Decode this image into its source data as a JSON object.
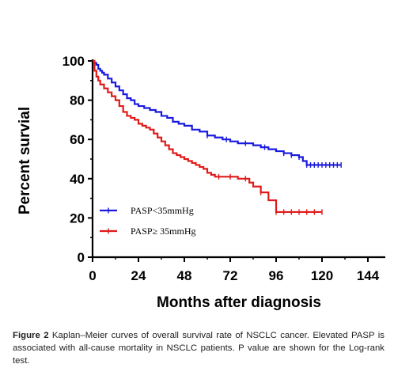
{
  "chart_data": {
    "type": "line",
    "xlabel": "Months after diagnosis",
    "ylabel": "Percent survial",
    "xlim": [
      0,
      144
    ],
    "ylim": [
      0,
      100
    ],
    "x_ticks": [
      "0",
      "24",
      "48",
      "72",
      "96",
      "120",
      "144"
    ],
    "y_ticks": [
      "0",
      "20",
      "40",
      "60",
      "80",
      "100"
    ],
    "legend_position": "lower-left",
    "series": [
      {
        "name": "PASP<35mmHg",
        "color": "#1a1adf",
        "step": true,
        "points": [
          [
            0,
            100
          ],
          [
            1,
            99
          ],
          [
            2,
            98
          ],
          [
            3,
            96
          ],
          [
            4,
            95
          ],
          [
            5,
            94
          ],
          [
            6,
            93
          ],
          [
            8,
            91
          ],
          [
            10,
            89
          ],
          [
            12,
            87
          ],
          [
            14,
            85
          ],
          [
            16,
            83
          ],
          [
            18,
            81
          ],
          [
            20,
            80
          ],
          [
            22,
            78
          ],
          [
            24,
            77
          ],
          [
            27,
            76
          ],
          [
            30,
            75
          ],
          [
            33,
            74
          ],
          [
            36,
            72
          ],
          [
            39,
            71
          ],
          [
            42,
            69
          ],
          [
            45,
            68
          ],
          [
            48,
            67
          ],
          [
            52,
            65
          ],
          [
            56,
            64
          ],
          [
            60,
            62
          ],
          [
            64,
            61
          ],
          [
            68,
            60
          ],
          [
            72,
            59
          ],
          [
            76,
            58
          ],
          [
            80,
            58
          ],
          [
            84,
            57
          ],
          [
            88,
            56
          ],
          [
            92,
            55
          ],
          [
            96,
            54
          ],
          [
            100,
            53
          ],
          [
            104,
            52
          ],
          [
            108,
            51
          ],
          [
            110,
            49
          ],
          [
            112,
            47
          ],
          [
            120,
            47
          ],
          [
            130,
            47
          ]
        ],
        "censor_x": [
          60,
          70,
          80,
          90,
          100,
          104,
          108,
          112,
          114,
          116,
          118,
          120,
          122,
          124,
          126,
          128,
          130
        ]
      },
      {
        "name": "PASP≥ 35mmHg",
        "color": "#e01a1a",
        "step": true,
        "points": [
          [
            0,
            100
          ],
          [
            1,
            95
          ],
          [
            2,
            92
          ],
          [
            3,
            90
          ],
          [
            4,
            88
          ],
          [
            6,
            86
          ],
          [
            8,
            84
          ],
          [
            10,
            82
          ],
          [
            12,
            80
          ],
          [
            14,
            77
          ],
          [
            16,
            74
          ],
          [
            18,
            72
          ],
          [
            20,
            71
          ],
          [
            22,
            70
          ],
          [
            24,
            68
          ],
          [
            26,
            67
          ],
          [
            28,
            66
          ],
          [
            30,
            65
          ],
          [
            32,
            63
          ],
          [
            34,
            61
          ],
          [
            36,
            59
          ],
          [
            38,
            57
          ],
          [
            40,
            55
          ],
          [
            42,
            53
          ],
          [
            44,
            52
          ],
          [
            46,
            51
          ],
          [
            48,
            50
          ],
          [
            50,
            49
          ],
          [
            52,
            48
          ],
          [
            54,
            47
          ],
          [
            56,
            46
          ],
          [
            58,
            45
          ],
          [
            60,
            43
          ],
          [
            62,
            42
          ],
          [
            64,
            41
          ],
          [
            70,
            41
          ],
          [
            76,
            40
          ],
          [
            82,
            38
          ],
          [
            84,
            36
          ],
          [
            88,
            33
          ],
          [
            92,
            29
          ],
          [
            96,
            23
          ],
          [
            120,
            23
          ]
        ],
        "censor_x": [
          66,
          72,
          80,
          88,
          96,
          100,
          104,
          108,
          112,
          116,
          120
        ]
      }
    ]
  },
  "caption": {
    "figure_label": "Figure 2",
    "text": "Kaplan–Meier curves of overall survival rate of NSCLC cancer. Elevated PASP is associated with all-cause mortality in NSCLC patients. P value are shown for the Log-rank test."
  }
}
